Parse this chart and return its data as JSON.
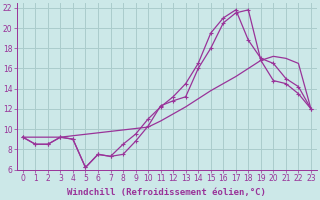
{
  "background_color": "#cce8e8",
  "grid_color": "#aacccc",
  "line_color": "#993399",
  "xlim": [
    -0.5,
    23.5
  ],
  "ylim": [
    6,
    22.5
  ],
  "xticks": [
    0,
    1,
    2,
    3,
    4,
    5,
    6,
    7,
    8,
    9,
    10,
    11,
    12,
    13,
    14,
    15,
    16,
    17,
    18,
    19,
    20,
    21,
    22,
    23
  ],
  "yticks": [
    6,
    8,
    10,
    12,
    14,
    16,
    18,
    20,
    22
  ],
  "xlabel": "Windchill (Refroidissement éolien,°C)",
  "series": [
    {
      "x": [
        0,
        1,
        2,
        3,
        4,
        5,
        6,
        7,
        8,
        9,
        10,
        11,
        12,
        13,
        14,
        15,
        16,
        17,
        18,
        19,
        20,
        21,
        22,
        23
      ],
      "y": [
        9.2,
        8.5,
        8.5,
        9.2,
        9.0,
        6.2,
        7.5,
        7.3,
        7.5,
        8.8,
        10.3,
        12.3,
        12.8,
        13.2,
        16.0,
        18.0,
        20.5,
        21.5,
        21.8,
        16.8,
        14.8,
        14.5,
        13.5,
        12.0
      ],
      "marker": true
    },
    {
      "x": [
        0,
        1,
        2,
        3,
        4,
        5,
        6,
        7,
        8,
        9,
        10,
        11,
        12,
        13,
        14,
        15,
        16,
        17,
        18,
        19,
        20,
        21,
        22,
        23
      ],
      "y": [
        9.2,
        8.5,
        8.5,
        9.2,
        9.0,
        6.2,
        7.5,
        7.3,
        8.5,
        9.5,
        11.0,
        12.2,
        13.2,
        14.5,
        16.5,
        19.5,
        21.0,
        21.8,
        18.8,
        17.0,
        16.5,
        15.0,
        14.2,
        12.0
      ],
      "marker": false
    },
    {
      "x": [
        0,
        3,
        10,
        11,
        12,
        13,
        14,
        15,
        16,
        17,
        18,
        19,
        20,
        21,
        22,
        23
      ],
      "y": [
        9.2,
        9.2,
        10.2,
        10.8,
        11.5,
        12.2,
        13.0,
        13.8,
        14.5,
        15.2,
        16.0,
        16.8,
        17.2,
        17.0,
        16.5,
        12.0
      ],
      "marker": false
    }
  ],
  "tick_fontsize": 5.5,
  "axis_fontsize": 6.5
}
